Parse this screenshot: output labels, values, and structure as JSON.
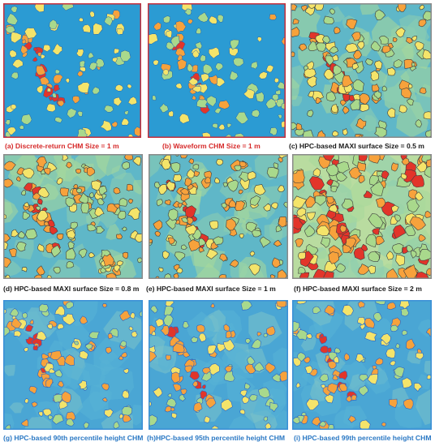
{
  "figure": {
    "background": "#ffffff",
    "panels": [
      {
        "id": "a",
        "caption": "(a) Discrete-return CHM Size = 1  m",
        "caption_color": "#d62a2a",
        "frame_color": "#c62f3c",
        "style": "chm"
      },
      {
        "id": "b",
        "caption": "(b) Waveform CHM Size = 1  m",
        "caption_color": "#d62a2a",
        "frame_color": "#c62f3c",
        "style": "chm"
      },
      {
        "id": "c",
        "caption": "(c) HPC-based MAXI surface Size = 0.5  m",
        "caption_color": "#1a1a1a",
        "frame_color": "#8a8a8a",
        "style": "maxi"
      },
      {
        "id": "d",
        "caption": "(d) HPC-based MAXI surface Size = 0.8  m",
        "caption_color": "#1a1a1a",
        "frame_color": "#8a8a8a",
        "style": "maxi"
      },
      {
        "id": "e",
        "caption": "(e) HPC-based MAXI surface Size = 1  m",
        "caption_color": "#1a1a1a",
        "frame_color": "#8a8a8a",
        "style": "maxi"
      },
      {
        "id": "f",
        "caption": "(f) HPC-based MAXI surface Size = 2  m",
        "caption_color": "#1a1a1a",
        "frame_color": "#8a8a8a",
        "style": "maxi2"
      },
      {
        "id": "g",
        "caption": "(g) HPC-based 90th percentile height  CHM",
        "caption_color": "#2a78c4",
        "frame_color": "#3b8fd6",
        "style": "pct"
      },
      {
        "id": "h",
        "caption": "(h)HPC-based 95th percentile height  CHM",
        "caption_color": "#2a78c4",
        "frame_color": "#3b8fd6",
        "style": "pct"
      },
      {
        "id": "i",
        "caption": "(i) HPC-based 99th percentile height  CHM",
        "caption_color": "#2a78c4",
        "frame_color": "#3b8fd6",
        "style": "pct"
      }
    ],
    "colormap": [
      "#2f6fd1",
      "#2fa0d8",
      "#57c2c2",
      "#a9d98c",
      "#f4e46a",
      "#f7a23c",
      "#e2352a"
    ]
  }
}
